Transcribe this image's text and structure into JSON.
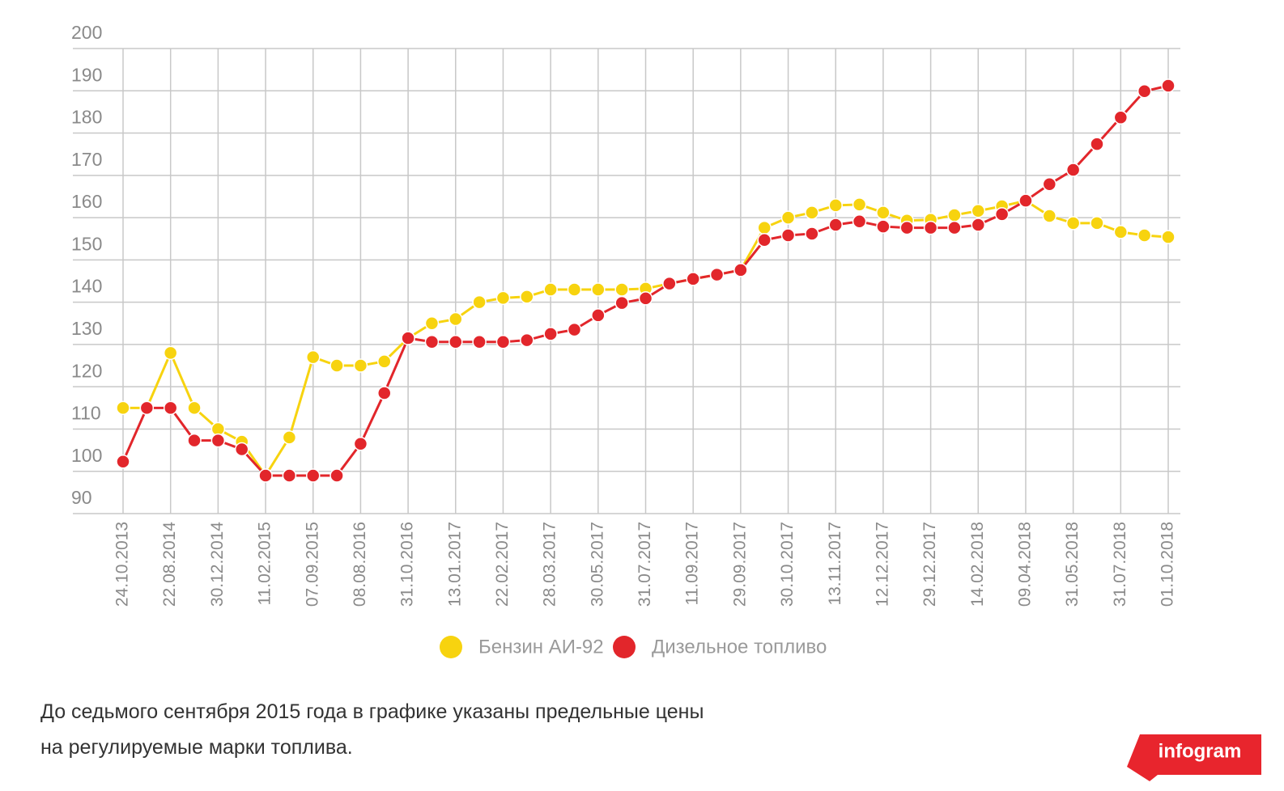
{
  "chart_data": {
    "type": "line",
    "categories": [
      "24.10.2013",
      null,
      "22.08.2014",
      null,
      "30.12.2014",
      null,
      "11.02.2015",
      null,
      "07.09.2015",
      null,
      "08.08.2016",
      null,
      "31.10.2016",
      null,
      "13.01.2017",
      null,
      "22.02.2017",
      null,
      "28.03.2017",
      null,
      "30.05.2017",
      null,
      "31.07.2017",
      null,
      "11.09.2017",
      null,
      "29.09.2017",
      null,
      "30.10.2017",
      null,
      "13.11.2017",
      null,
      "12.12.2017",
      null,
      "29.12.2017",
      null,
      "14.02.2018",
      null,
      "09.04.2018",
      null,
      "31.05.2018",
      null,
      "31.07.2018",
      null,
      "01.10.2018"
    ],
    "series": [
      {
        "name": "Бензин АИ-92",
        "color": "#f7d30f",
        "values": [
          115,
          115,
          128,
          115,
          110,
          107,
          99,
          108,
          127,
          125,
          125,
          126,
          131.5,
          135,
          136,
          140,
          141,
          141.3,
          143,
          143,
          143,
          143,
          143.2,
          144.4,
          145.5,
          146.5,
          147.6,
          157.6,
          160,
          161.2,
          162.9,
          163.1,
          161.2,
          159.3,
          159.5,
          160.6,
          161.6,
          162.7,
          164,
          160.4,
          158.7,
          158.7,
          156.6,
          155.8,
          155.4
        ]
      },
      {
        "name": "Дизельное топливо",
        "color": "#e2262b",
        "values": [
          102.3,
          115,
          115,
          107.3,
          107.3,
          105.2,
          99,
          99,
          99,
          99,
          106.5,
          118.5,
          131.5,
          130.6,
          130.6,
          130.6,
          130.6,
          131,
          132.5,
          133.5,
          136.9,
          139.8,
          140.9,
          144.4,
          145.5,
          146.5,
          147.6,
          154.7,
          155.8,
          156.2,
          158.3,
          159.1,
          157.9,
          157.6,
          157.6,
          157.6,
          158.3,
          160.8,
          164,
          167.9,
          171.3,
          177.4,
          183.7,
          189.9,
          191.2
        ]
      }
    ],
    "ylim": [
      90,
      200
    ],
    "yticks": [
      90,
      100,
      110,
      120,
      130,
      140,
      150,
      160,
      170,
      180,
      190,
      200
    ],
    "grid": true,
    "legend": "bottom"
  },
  "note": [
    "До седьмого сентября 2015 года в графике указаны предельные цены",
    "на регулируемые марки топлива."
  ],
  "brand": "infogram"
}
